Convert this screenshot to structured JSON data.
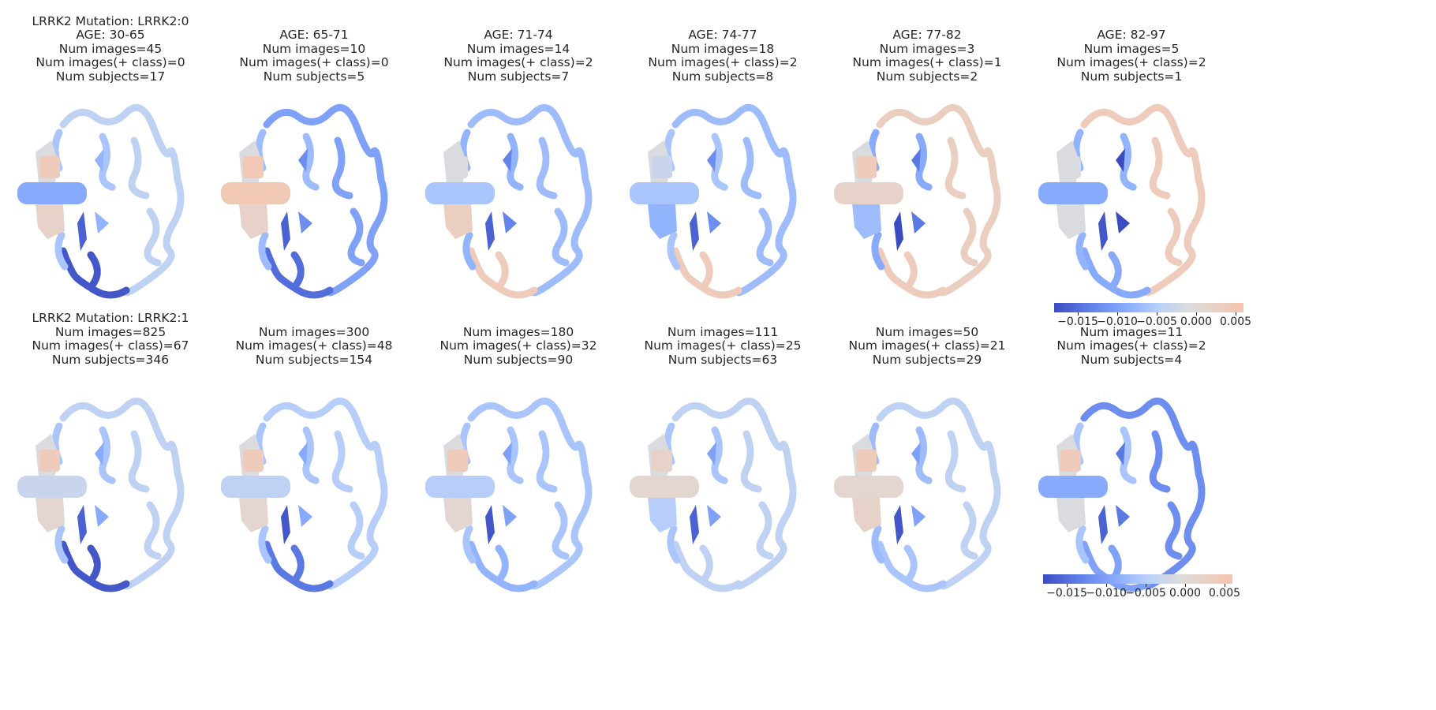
{
  "colormap": {
    "name": "coolwarm",
    "range": [
      -0.018,
      0.006
    ],
    "stops": [
      "#3b4cc0",
      "#6282ea",
      "#8db0fe",
      "#b8d0f9",
      "#dddcdc",
      "#f5c4ac"
    ]
  },
  "colorbar": {
    "ticks": [
      -0.015,
      -0.01,
      -0.005,
      0.0,
      0.005
    ],
    "tick_labels": [
      "−0.015",
      "−0.010",
      "−0.005",
      "0.000",
      "0.005"
    ]
  },
  "rows": [
    {
      "mutation_label": "LRRK2 Mutation: LRRK2:0",
      "panels": [
        {
          "age": "AGE: 30-65",
          "num_images": "Num images=45",
          "num_pos": "Num images(+ class)=0",
          "num_subjects": "Num subjects=17",
          "regions": {
            "brainstem": -0.009,
            "thalamus": 0.004,
            "lower_lobe": 0.002,
            "cortex_left": -0.006,
            "cortex_right": -0.004,
            "occipital": -0.017,
            "ventricle": -0.016,
            "insula": -0.008
          }
        },
        {
          "age": "AGE: 65-71",
          "num_images": "Num images=10",
          "num_pos": "Num images(+ class)=0",
          "num_subjects": "Num subjects=5",
          "regions": {
            "brainstem": 0.005,
            "thalamus": 0.005,
            "lower_lobe": 0.002,
            "cortex_left": -0.007,
            "cortex_right": -0.01,
            "occipital": -0.015,
            "ventricle": -0.016,
            "insula": -0.012
          }
        },
        {
          "age": "AGE: 71-74",
          "num_images": "Num images=14",
          "num_pos": "Num images(+ class)=2",
          "num_subjects": "Num subjects=7",
          "regions": {
            "brainstem": -0.006,
            "thalamus": -0.001,
            "lower_lobe": 0.003,
            "cortex_left": -0.008,
            "cortex_right": -0.007,
            "occipital": 0.004,
            "ventricle": -0.016,
            "insula": -0.013
          }
        },
        {
          "age": "AGE: 74-77",
          "num_images": "Num images=18",
          "num_pos": "Num images(+ class)=2",
          "num_subjects": "Num subjects=8",
          "regions": {
            "brainstem": -0.006,
            "thalamus": -0.003,
            "lower_lobe": -0.008,
            "cortex_left": -0.006,
            "cortex_right": -0.007,
            "occipital": 0.004,
            "ventricle": -0.016,
            "insula": -0.012
          }
        },
        {
          "age": "AGE: 77-82",
          "num_images": "Num images=3",
          "num_pos": "Num images(+ class)=1",
          "num_subjects": "Num subjects=2",
          "regions": {
            "brainstem": 0.002,
            "thalamus": 0.004,
            "lower_lobe": -0.007,
            "cortex_left": -0.009,
            "cortex_right": 0.003,
            "occipital": 0.004,
            "ventricle": -0.018,
            "insula": -0.014
          }
        },
        {
          "age": "AGE: 82-97",
          "num_images": "Num images=5",
          "num_pos": "Num images(+ class)=2",
          "num_subjects": "Num subjects=1",
          "regions": {
            "brainstem": -0.009,
            "thalamus": -0.001,
            "lower_lobe": -0.001,
            "cortex_left": -0.008,
            "cortex_right": 0.004,
            "occipital": -0.009,
            "ventricle": -0.017,
            "insula": -0.018
          }
        }
      ]
    },
    {
      "mutation_label": "LRRK2 Mutation: LRRK2:1",
      "panels": [
        {
          "age": "",
          "num_images": "Num images=825",
          "num_pos": "Num images(+ class)=67",
          "num_subjects": "Num subjects=346",
          "regions": {
            "brainstem": -0.003,
            "thalamus": 0.004,
            "lower_lobe": 0.001,
            "cortex_left": -0.006,
            "cortex_right": -0.004,
            "occipital": -0.017,
            "ventricle": -0.016,
            "insula": -0.009
          }
        },
        {
          "age": "",
          "num_images": "Num images=300",
          "num_pos": "Num images(+ class)=48",
          "num_subjects": "Num subjects=154",
          "regions": {
            "brainstem": -0.004,
            "thalamus": 0.004,
            "lower_lobe": 0.001,
            "cortex_left": -0.006,
            "cortex_right": -0.005,
            "occipital": -0.014,
            "ventricle": -0.017,
            "insula": -0.009
          }
        },
        {
          "age": "",
          "num_images": "Num images=180",
          "num_pos": "Num images(+ class)=32",
          "num_subjects": "Num subjects=90",
          "regions": {
            "brainstem": -0.005,
            "thalamus": 0.004,
            "lower_lobe": 0.001,
            "cortex_left": -0.006,
            "cortex_right": -0.006,
            "occipital": -0.008,
            "ventricle": -0.017,
            "insula": -0.01
          }
        },
        {
          "age": "",
          "num_images": "Num images=111",
          "num_pos": "Num images(+ class)=25",
          "num_subjects": "Num subjects=63",
          "regions": {
            "brainstem": 0.001,
            "thalamus": 0.002,
            "lower_lobe": -0.005,
            "cortex_left": -0.006,
            "cortex_right": -0.004,
            "occipital": -0.004,
            "ventricle": -0.016,
            "insula": -0.01
          }
        },
        {
          "age": "",
          "num_images": "Num images=50",
          "num_pos": "Num images(+ class)=21",
          "num_subjects": "Num subjects=29",
          "regions": {
            "brainstem": 0.001,
            "thalamus": 0.004,
            "lower_lobe": 0.002,
            "cortex_left": -0.007,
            "cortex_right": -0.004,
            "occipital": -0.006,
            "ventricle": -0.017,
            "insula": -0.01
          }
        },
        {
          "age": "",
          "num_images": "Num images=11",
          "num_pos": "Num images(+ class)=2",
          "num_subjects": "Num subjects=4",
          "regions": {
            "brainstem": -0.009,
            "thalamus": 0.004,
            "lower_lobe": -0.001,
            "cortex_left": -0.006,
            "cortex_right": -0.012,
            "occipital": -0.01,
            "ventricle": -0.016,
            "insula": -0.014
          }
        }
      ]
    }
  ],
  "chart_data": {
    "type": "heatmap",
    "colormap": "coolwarm",
    "value_range": [
      -0.018,
      0.006
    ],
    "row_labels": [
      "LRRK2 Mutation: LRRK2:0",
      "LRRK2 Mutation: LRRK2:1"
    ],
    "columns": [
      "AGE: 30-65",
      "AGE: 65-71",
      "AGE: 71-74",
      "AGE: 74-77",
      "AGE: 77-82",
      "AGE: 82-97"
    ],
    "colorbar_ticks": [
      -0.015,
      -0.01,
      -0.005,
      0.0,
      0.005
    ]
  }
}
